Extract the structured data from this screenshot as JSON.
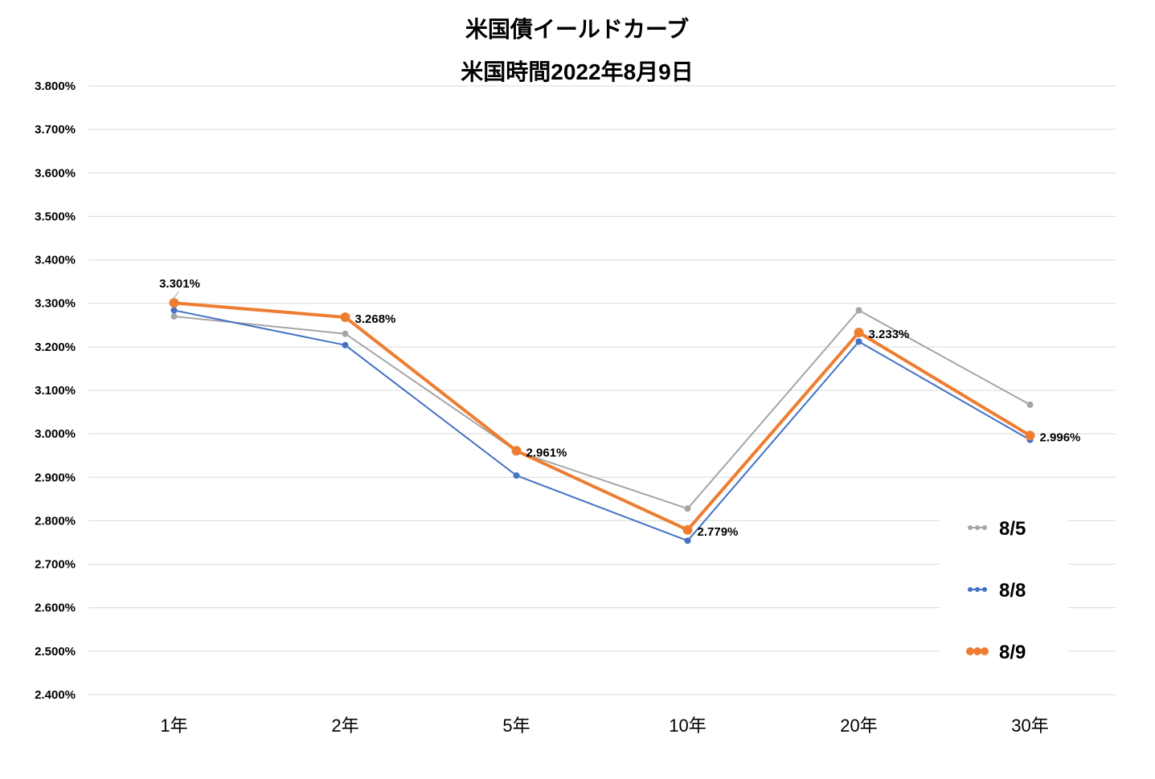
{
  "chart_data": {
    "type": "line",
    "title": "米国債イールドカーブ",
    "subtitle": "米国時間2022年8月9日",
    "categories": [
      "1年",
      "2年",
      "5年",
      "10年",
      "20年",
      "30年"
    ],
    "y_tick_labels": [
      "3.800%",
      "3.700%",
      "3.600%",
      "3.500%",
      "3.400%",
      "3.300%",
      "3.200%",
      "3.100%",
      "3.000%",
      "2.900%",
      "2.800%",
      "2.700%",
      "2.600%",
      "2.500%",
      "2.400%"
    ],
    "ylim": [
      2.4,
      3.8
    ],
    "ystep": 0.1,
    "grid": true,
    "legend_position": "bottom-right",
    "series": [
      {
        "name": "8/5",
        "color": "#a5a5a5",
        "values": [
          3.27,
          3.23,
          2.96,
          2.828,
          3.284,
          3.067
        ],
        "emphasis": false
      },
      {
        "name": "8/8",
        "color": "#4472c4",
        "values": [
          3.284,
          3.204,
          2.904,
          2.754,
          3.212,
          2.986
        ],
        "emphasis": false
      },
      {
        "name": "8/9",
        "color": "#ed7d31",
        "values": [
          3.301,
          3.268,
          2.961,
          2.779,
          3.233,
          2.996
        ],
        "emphasis": true
      }
    ],
    "data_labels": [
      "3.301%",
      "3.268%",
      "2.961%",
      "2.779%",
      "3.233%",
      "2.996%"
    ]
  }
}
